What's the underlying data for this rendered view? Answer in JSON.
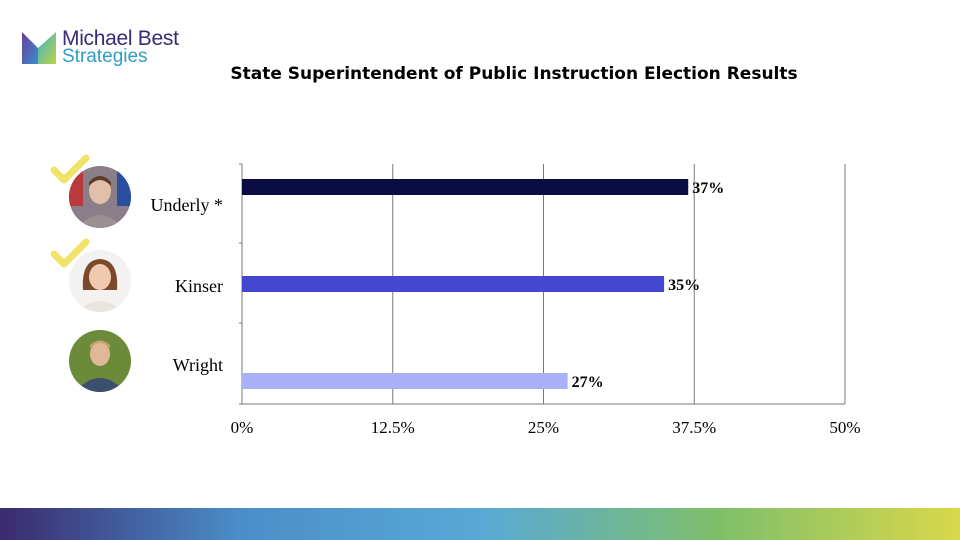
{
  "logo": {
    "line1": "Michael Best",
    "line2": "Strategies"
  },
  "title": "State Superintendent of Public Instruction Election Results",
  "candidates": [
    {
      "name": "Underly *",
      "winner": true
    },
    {
      "name": "Kinser",
      "winner": true
    },
    {
      "name": "Wright",
      "winner": false
    }
  ],
  "colors": {
    "check": "#f1e36a",
    "logo_purple": "#3b2a78",
    "logo_blue": "#2e9dc8",
    "footer_gradient": [
      "#3b2a6e",
      "#4a8ec9",
      "#58a9d6",
      "#7fbf6a",
      "#d9d84a"
    ]
  },
  "chart_data": {
    "type": "bar",
    "orientation": "horizontal",
    "categories": [
      "Underly *",
      "Kinser",
      "Wright"
    ],
    "values": [
      37,
      35,
      27
    ],
    "value_labels": [
      "37%",
      "35%",
      "27%"
    ],
    "bar_colors": [
      "#0c0c44",
      "#4448d0",
      "#aab0f6"
    ],
    "xlim": [
      0,
      50
    ],
    "xticks": [
      0,
      12.5,
      25,
      37.5,
      50
    ],
    "xtick_labels": [
      "0%",
      "12.5%",
      "25%",
      "37.5%",
      "50%"
    ],
    "grid": true,
    "title": "State Superintendent of Public Instruction Election Results",
    "xlabel": "",
    "ylabel": ""
  }
}
